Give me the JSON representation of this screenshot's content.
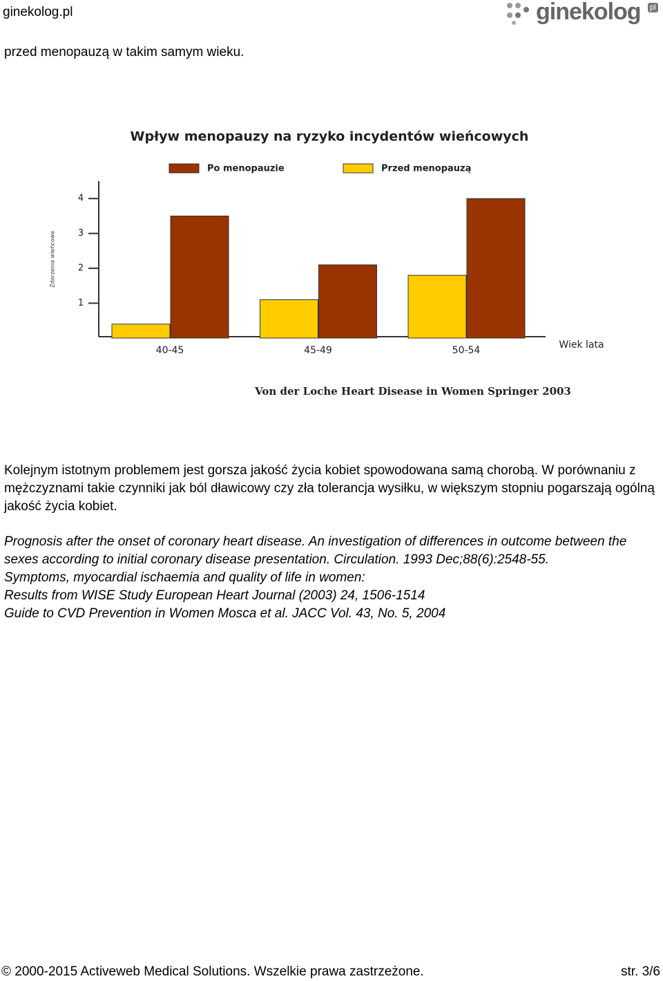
{
  "header": {
    "site": "ginekolog.pl",
    "logo": "ginekolog",
    "logo_badge": "pl"
  },
  "intro": "przed menopauzą w takim samym wieku.",
  "chart_data": {
    "type": "bar",
    "title": "Wpływ menopauzy na ryzyko incydentów wieńcowych",
    "categories": [
      "40-45",
      "45-49",
      "50-54"
    ],
    "series": [
      {
        "name": "Przed menopauzą",
        "color": "#ffcc00",
        "values": [
          0.4,
          1.1,
          1.8
        ]
      },
      {
        "name": "Po menopauzie",
        "color": "#993300",
        "values": [
          3.5,
          2.1,
          4.0
        ]
      }
    ],
    "legend_order": [
      1,
      0
    ],
    "y_label": "Zdarzenia wieńcowe",
    "x_label": "Wiek lata",
    "ylim": [
      0,
      4.5
    ],
    "yticks": [
      1,
      2,
      3,
      4
    ],
    "source": "Von der Loche Heart Disease in Women Springer 2003"
  },
  "paragraph": "Kolejnym istotnym problemem jest gorsza jakość życia kobiet spowodowana samą chorobą. W porównaniu z mężczyznami takie czynniki jak ból dławicowy czy zła tolerancja wysiłku, w większym stopniu pogarszają ogólną jakość życia kobiet.",
  "references": [
    "Prognosis after the onset of coronary heart disease. An investigation of differences in outcome between the sexes according to initial coronary disease presentation. Circulation. 1993 Dec;88(6):2548-55.",
    "Symptoms, myocardial ischaemia and quality of life in women:",
    "Results from WISE Study European Heart Journal (2003) 24, 1506-1514",
    "Guide to CVD Prevention in Women Mosca et al. JACC Vol. 43, No. 5, 2004"
  ],
  "footer": {
    "copyright": "© 2000-2015 Activeweb Medical Solutions. Wszelkie prawa zastrzeżone.",
    "page": "str. 3/6"
  }
}
